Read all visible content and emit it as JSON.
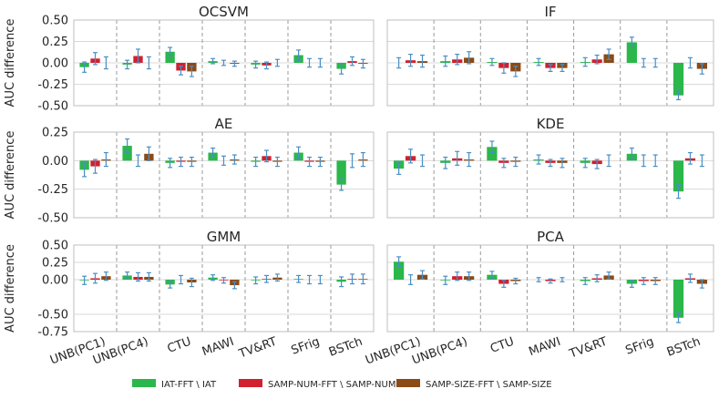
{
  "colors": {
    "iat": "#2bb74a",
    "num": "#d1202e",
    "size": "#8b4a16",
    "err": "#4a8fc4",
    "grid": "#d9d9d9",
    "frame": "#bfbfbf",
    "sep": "#9a9a9a"
  },
  "legend": [
    {
      "key": "iat",
      "label": "IAT-FFT \\ IAT"
    },
    {
      "key": "num",
      "label": "SAMP-NUM-FFT \\ SAMP-NUM"
    },
    {
      "key": "size",
      "label": "SAMP-SIZE-FFT \\ SAMP-SIZE"
    }
  ],
  "chart_data": {
    "type": "bar",
    "categories": [
      "UNB(PC1)",
      "UNB(PC4)",
      "CTU",
      "MAWI",
      "TV&RT",
      "SFrig",
      "BSTch"
    ],
    "series_names": [
      "IAT-FFT \\ IAT",
      "SAMP-NUM-FFT \\ SAMP-NUM",
      "SAMP-SIZE-FFT \\ SAMP-SIZE"
    ],
    "ylabel": "AUC difference",
    "panels": [
      {
        "title": "OCSVM",
        "ylim": [
          -0.5,
          0.5
        ],
        "yticks": [
          "0.50",
          "0.25",
          "0.00",
          "-0.25",
          "-0.50"
        ],
        "ytickvals": [
          0.5,
          0.25,
          0,
          -0.25,
          -0.5
        ],
        "values": [
          [
            -0.05,
            0.05,
            0
          ],
          [
            -0.02,
            0.08,
            0
          ],
          [
            0.13,
            -0.09,
            -0.1
          ],
          [
            0.02,
            0,
            -0.01
          ],
          [
            -0.02,
            -0.03,
            0
          ],
          [
            0.09,
            0,
            0
          ],
          [
            -0.07,
            0.02,
            -0.01
          ]
        ],
        "errors": [
          [
            0.06,
            0.07,
            0.07
          ],
          [
            0.05,
            0.08,
            0.07
          ],
          [
            0.05,
            0.05,
            0.06
          ],
          [
            0.03,
            0.03,
            0.03
          ],
          [
            0.04,
            0.04,
            0.04
          ],
          [
            0.06,
            0.05,
            0.05
          ],
          [
            0.06,
            0.05,
            0.05
          ]
        ]
      },
      {
        "title": "IF",
        "ylim": [
          -0.5,
          0.5
        ],
        "yticks": [],
        "ytickvals": [
          0.5,
          0.25,
          0,
          -0.25,
          -0.5
        ],
        "values": [
          [
            0,
            0.03,
            0.02
          ],
          [
            0.02,
            0.04,
            0.06
          ],
          [
            0.01,
            -0.06,
            -0.1
          ],
          [
            0.01,
            -0.06,
            -0.06
          ],
          [
            0.01,
            0.04,
            0.1
          ],
          [
            0.24,
            0,
            0
          ],
          [
            -0.38,
            0,
            -0.07
          ]
        ],
        "errors": [
          [
            0.06,
            0.07,
            0.07
          ],
          [
            0.06,
            0.06,
            0.07
          ],
          [
            0.04,
            0.06,
            0.06
          ],
          [
            0.04,
            0.04,
            0.04
          ],
          [
            0.05,
            0.05,
            0.06
          ],
          [
            0.06,
            0.05,
            0.05
          ],
          [
            0.05,
            0.06,
            0.06
          ]
        ]
      },
      {
        "title": "AE",
        "ylim": [
          -0.5,
          0.25
        ],
        "yticks": [
          "0.25",
          "0.00",
          "-0.25",
          "-0.50"
        ],
        "ytickvals": [
          0.25,
          0,
          -0.25,
          -0.5
        ],
        "values": [
          [
            -0.08,
            -0.05,
            0.01
          ],
          [
            0.13,
            0,
            0.06
          ],
          [
            -0.02,
            -0.01,
            -0.01
          ],
          [
            0.07,
            0,
            0.01
          ],
          [
            -0.01,
            0.04,
            -0.01
          ],
          [
            0.07,
            -0.01,
            -0.01
          ],
          [
            -0.21,
            0,
            0.01
          ]
        ],
        "errors": [
          [
            0.06,
            0.06,
            0.06
          ],
          [
            0.06,
            0.05,
            0.06
          ],
          [
            0.04,
            0.04,
            0.04
          ],
          [
            0.04,
            0.04,
            0.04
          ],
          [
            0.04,
            0.05,
            0.04
          ],
          [
            0.05,
            0.04,
            0.04
          ],
          [
            0.05,
            0.06,
            0.06
          ]
        ]
      },
      {
        "title": "KDE",
        "ylim": [
          -0.5,
          0.25
        ],
        "yticks": [],
        "ytickvals": [
          0.25,
          0,
          -0.25,
          -0.5
        ],
        "values": [
          [
            -0.07,
            0.04,
            0
          ],
          [
            -0.02,
            0.02,
            0.01
          ],
          [
            0.12,
            -0.02,
            -0.01
          ],
          [
            0.01,
            -0.02,
            -0.02
          ],
          [
            -0.02,
            -0.03,
            0
          ],
          [
            0.06,
            0,
            0
          ],
          [
            -0.27,
            0.02,
            0
          ]
        ],
        "errors": [
          [
            0.05,
            0.06,
            0.05
          ],
          [
            0.05,
            0.06,
            0.06
          ],
          [
            0.05,
            0.04,
            0.04
          ],
          [
            0.04,
            0.03,
            0.04
          ],
          [
            0.04,
            0.04,
            0.05
          ],
          [
            0.05,
            0.05,
            0.05
          ],
          [
            0.06,
            0.05,
            0.05
          ]
        ]
      },
      {
        "title": "GMM",
        "ylim": [
          -0.75,
          0.5
        ],
        "yticks": [
          "0.50",
          "0.25",
          "0.00",
          "-0.50",
          "-0.75"
        ],
        "ytickvals": [
          0.5,
          0.25,
          0,
          -0.5,
          -0.75
        ],
        "values": [
          [
            -0.01,
            0.02,
            0.05
          ],
          [
            0.06,
            0.04,
            0.04
          ],
          [
            -0.07,
            0,
            -0.04
          ],
          [
            0.03,
            -0.01,
            -0.08
          ],
          [
            -0.01,
            0.01,
            0.03
          ],
          [
            0.01,
            0,
            0
          ],
          [
            -0.03,
            0.01,
            0.01
          ]
        ],
        "errors": [
          [
            0.06,
            0.07,
            0.06
          ],
          [
            0.05,
            0.06,
            0.06
          ],
          [
            0.05,
            0.06,
            0.06
          ],
          [
            0.04,
            0.04,
            0.05
          ],
          [
            0.05,
            0.05,
            0.05
          ],
          [
            0.05,
            0.06,
            0.06
          ],
          [
            0.07,
            0.07,
            0.07
          ]
        ]
      },
      {
        "title": "PCA",
        "ylim": [
          -0.75,
          0.5
        ],
        "yticks": [],
        "ytickvals": [
          0.5,
          0.25,
          0,
          -0.5,
          -0.75
        ],
        "values": [
          [
            0.26,
            0,
            0.07
          ],
          [
            -0.01,
            0.05,
            0.05
          ],
          [
            0.07,
            -0.06,
            -0.02
          ],
          [
            0,
            -0.02,
            0
          ],
          [
            -0.02,
            0.02,
            0.06
          ],
          [
            -0.06,
            -0.02,
            -0.02
          ],
          [
            -0.55,
            0.02,
            -0.06
          ]
        ],
        "errors": [
          [
            0.07,
            0.07,
            0.06
          ],
          [
            0.06,
            0.06,
            0.06
          ],
          [
            0.05,
            0.05,
            0.04
          ],
          [
            0.03,
            0.03,
            0.03
          ],
          [
            0.05,
            0.05,
            0.05
          ],
          [
            0.05,
            0.05,
            0.05
          ],
          [
            0.07,
            0.06,
            0.06
          ]
        ]
      }
    ]
  }
}
